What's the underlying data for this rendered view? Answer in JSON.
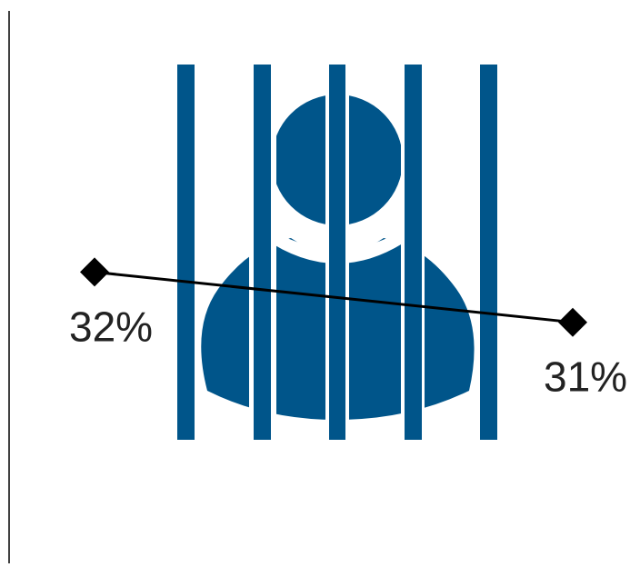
{
  "colors": {
    "prisoner": "#00558a",
    "line": "#000000",
    "label": "#222222",
    "axis": "#000000"
  },
  "icons": {
    "figure": "prisoner-behind-bars-icon"
  },
  "chart_data": {
    "type": "line",
    "title": "",
    "xlabel": "",
    "ylabel": "",
    "series": [
      {
        "values": [
          32,
          31
        ],
        "labels": [
          "32%",
          "31%"
        ],
        "marker": "diamond"
      }
    ],
    "ylim": [
      26.2,
      37.2
    ],
    "grid": false,
    "legend": "none"
  }
}
